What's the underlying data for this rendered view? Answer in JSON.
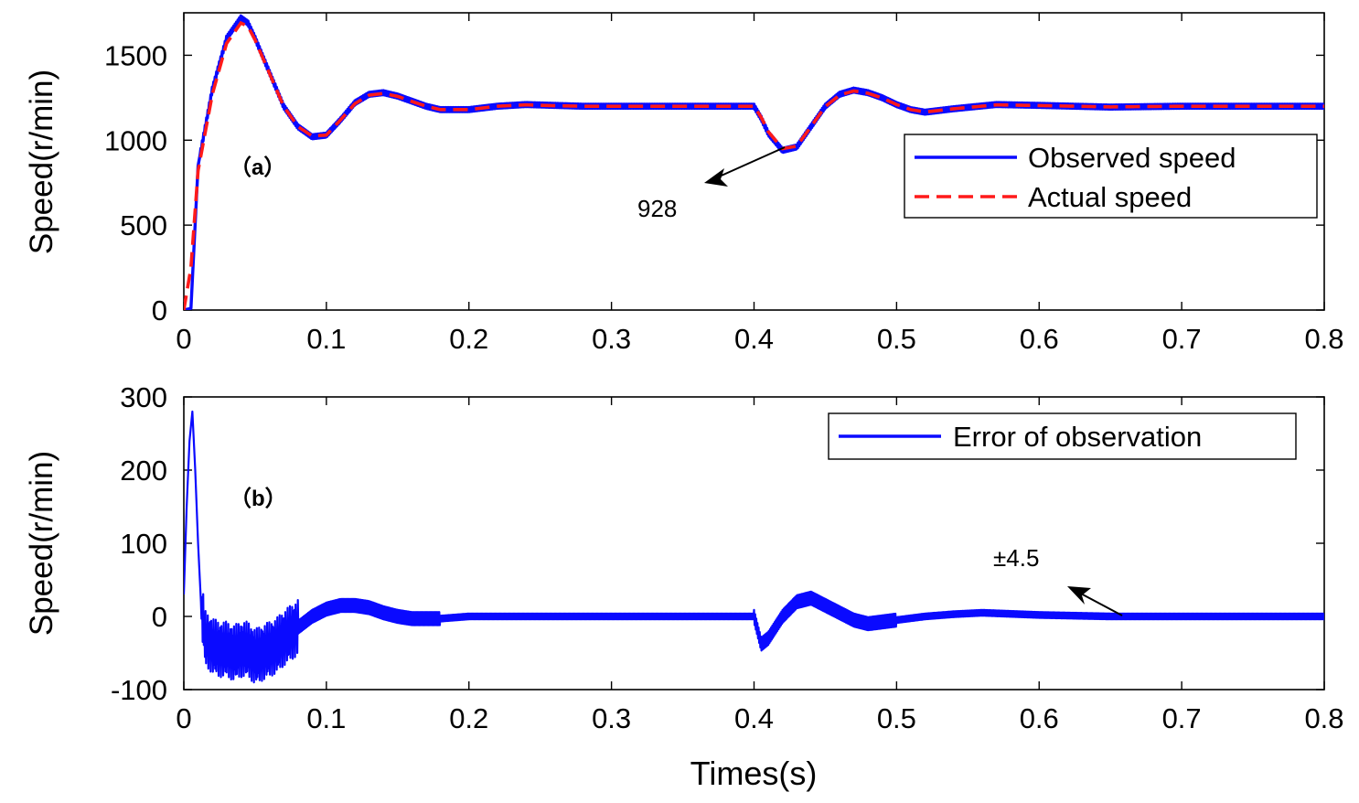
{
  "colors": {
    "observed": "#0a0aff",
    "actual": "#ff1a1a",
    "error": "#0a0aff",
    "axis": "#000000"
  },
  "chart_data": [
    {
      "id": "a",
      "type": "line",
      "panel_label": "（a）",
      "ylabel": "Speed(r/min)",
      "xlabel": "",
      "xlim": [
        0,
        0.8
      ],
      "ylim": [
        0,
        1750
      ],
      "xticks": [
        0,
        0.1,
        0.2,
        0.3,
        0.4,
        0.5,
        0.6,
        0.7,
        0.8
      ],
      "xtick_labels": [
        "0",
        "0.1",
        "0.2",
        "0.3",
        "0.4",
        "0.5",
        "0.6",
        "0.7",
        "0.8"
      ],
      "yticks": [
        0,
        500,
        1000,
        1500
      ],
      "ytick_labels": [
        "0",
        "500",
        "1000",
        "1500"
      ],
      "legend": [
        "Observed speed",
        "Actual speed"
      ],
      "annotation": "928",
      "series": [
        {
          "name": "Observed speed",
          "x": [
            0,
            0.005,
            0.01,
            0.02,
            0.03,
            0.04,
            0.045,
            0.05,
            0.06,
            0.07,
            0.08,
            0.09,
            0.1,
            0.11,
            0.12,
            0.13,
            0.14,
            0.15,
            0.16,
            0.17,
            0.18,
            0.19,
            0.2,
            0.22,
            0.24,
            0.26,
            0.28,
            0.3,
            0.35,
            0.4,
            0.405,
            0.41,
            0.42,
            0.43,
            0.44,
            0.45,
            0.46,
            0.47,
            0.48,
            0.49,
            0.5,
            0.51,
            0.52,
            0.54,
            0.57,
            0.6,
            0.65,
            0.7,
            0.75,
            0.8
          ],
          "values": [
            0,
            10,
            850,
            1300,
            1600,
            1720,
            1690,
            1600,
            1400,
            1200,
            1080,
            1020,
            1030,
            1120,
            1220,
            1270,
            1280,
            1260,
            1230,
            1200,
            1180,
            1180,
            1180,
            1200,
            1210,
            1205,
            1200,
            1200,
            1200,
            1200,
            1130,
            1040,
            940,
            960,
            1080,
            1200,
            1270,
            1295,
            1280,
            1250,
            1210,
            1180,
            1165,
            1185,
            1210,
            1205,
            1195,
            1200,
            1200,
            1200
          ]
        },
        {
          "name": "Actual speed",
          "x": [
            0,
            0.005,
            0.01,
            0.02,
            0.03,
            0.04,
            0.045,
            0.05,
            0.06,
            0.07,
            0.08,
            0.09,
            0.1,
            0.11,
            0.12,
            0.13,
            0.14,
            0.15,
            0.16,
            0.17,
            0.18,
            0.19,
            0.2,
            0.22,
            0.24,
            0.26,
            0.28,
            0.3,
            0.35,
            0.4,
            0.405,
            0.41,
            0.42,
            0.43,
            0.44,
            0.45,
            0.46,
            0.47,
            0.48,
            0.49,
            0.5,
            0.51,
            0.52,
            0.54,
            0.57,
            0.6,
            0.65,
            0.7,
            0.75,
            0.8
          ],
          "values": [
            0,
            250,
            820,
            1270,
            1570,
            1690,
            1670,
            1590,
            1395,
            1200,
            1080,
            1025,
            1030,
            1120,
            1215,
            1265,
            1275,
            1258,
            1228,
            1200,
            1180,
            1180,
            1180,
            1200,
            1208,
            1203,
            1200,
            1200,
            1200,
            1200,
            1135,
            1050,
            950,
            965,
            1080,
            1198,
            1265,
            1290,
            1276,
            1248,
            1210,
            1180,
            1166,
            1185,
            1208,
            1204,
            1196,
            1200,
            1200,
            1200
          ]
        }
      ]
    },
    {
      "id": "b",
      "type": "line",
      "panel_label": "（b）",
      "ylabel": "Speed(r/min)",
      "xlabel": "Times(s)",
      "xlim": [
        0,
        0.8
      ],
      "ylim": [
        -100,
        300
      ],
      "xticks": [
        0,
        0.1,
        0.2,
        0.3,
        0.4,
        0.5,
        0.6,
        0.7,
        0.8
      ],
      "xtick_labels": [
        "0",
        "0.1",
        "0.2",
        "0.3",
        "0.4",
        "0.5",
        "0.6",
        "0.7",
        "0.8"
      ],
      "yticks": [
        -100,
        0,
        100,
        200,
        300
      ],
      "ytick_labels": [
        "-100",
        "0",
        "100",
        "200",
        "300"
      ],
      "legend": [
        "Error of observation"
      ],
      "annotation": "±4.5",
      "series": [
        {
          "name": "Error of observation",
          "x": [
            0,
            0.002,
            0.004,
            0.006,
            0.008,
            0.01,
            0.012,
            0.015,
            0.02,
            0.025,
            0.03,
            0.035,
            0.04,
            0.045,
            0.05,
            0.055,
            0.06,
            0.065,
            0.07,
            0.08,
            0.09,
            0.1,
            0.11,
            0.12,
            0.13,
            0.14,
            0.15,
            0.16,
            0.18,
            0.2,
            0.25,
            0.3,
            0.35,
            0.4,
            0.402,
            0.405,
            0.41,
            0.42,
            0.43,
            0.44,
            0.45,
            0.46,
            0.47,
            0.48,
            0.5,
            0.52,
            0.54,
            0.56,
            0.6,
            0.65,
            0.7,
            0.75,
            0.8
          ],
          "values": [
            30,
            150,
            240,
            280,
            200,
            100,
            20,
            -30,
            -40,
            -45,
            -45,
            -50,
            -45,
            -45,
            -55,
            -50,
            -45,
            -40,
            -30,
            -15,
            0,
            10,
            15,
            15,
            12,
            5,
            0,
            -3,
            -3,
            0,
            0,
            0,
            0,
            0,
            -15,
            -38,
            -30,
            0,
            20,
            25,
            15,
            5,
            -5,
            -10,
            -5,
            0,
            3,
            5,
            2,
            0,
            0,
            0,
            0
          ]
        }
      ]
    }
  ]
}
